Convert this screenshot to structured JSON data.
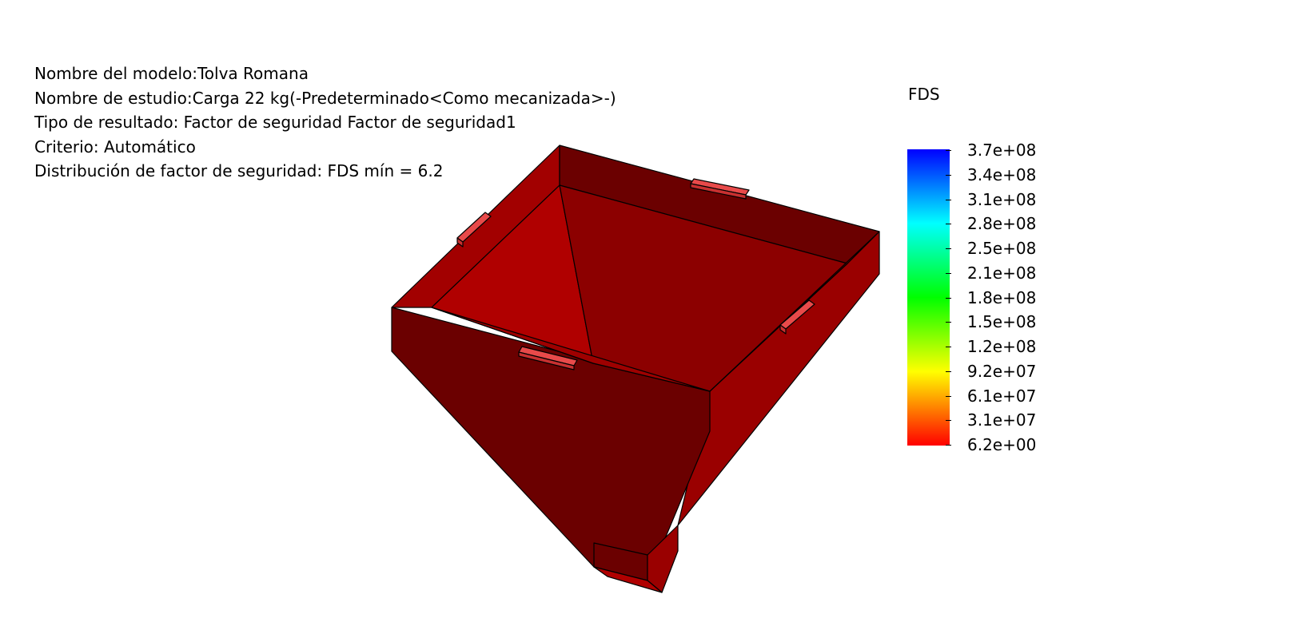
{
  "header": {
    "model_name": "Nombre del modelo:Tolva Romana",
    "study_name": "Nombre de estudio:Carga 22 kg(-Predeterminado<Como mecanizada>-)",
    "result_type": "Tipo de resultado: Factor de seguridad Factor de seguridad1",
    "criterion": "Criterio: Automático",
    "distribution": "Distribución de factor de seguridad: FDS mín = 6.2"
  },
  "legend": {
    "title": "FDS",
    "ticks": [
      "3.7e+08",
      "3.4e+08",
      "3.1e+08",
      "2.8e+08",
      "2.5e+08",
      "2.1e+08",
      "1.8e+08",
      "1.5e+08",
      "1.2e+08",
      "9.2e+07",
      "6.1e+07",
      "3.1e+07",
      "6.2e+00"
    ],
    "colors": [
      "#0000ff",
      "#00ffff",
      "#00ff00",
      "#ffff00",
      "#ff0000"
    ]
  },
  "model": {
    "colors": {
      "outer_dark": "#6b0000",
      "inner_wall": "#8c0000",
      "inner_bright": "#b00000",
      "side_wall": "#9a0000",
      "tab": "#e84a4a",
      "tab_dark": "#c83030"
    }
  }
}
